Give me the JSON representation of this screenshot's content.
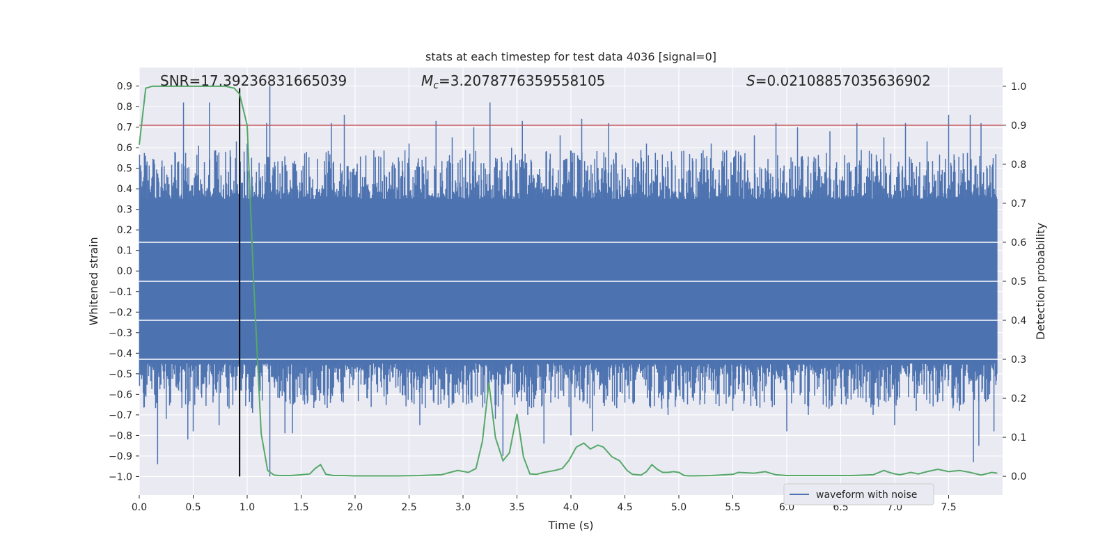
{
  "chart_data": {
    "type": "line",
    "title": "stats at each timestep for test data 4036 [signal=0]",
    "xlabel": "Time (s)",
    "ylabel": "Whitened strain",
    "y2label": "Detection probability",
    "xlim": [
      0.0,
      8.0
    ],
    "ylim": [
      -1.09,
      0.99
    ],
    "y2lim": [
      -0.048,
      1.048
    ],
    "xticks": [
      "0.0",
      "0.5",
      "1.0",
      "1.5",
      "2.0",
      "2.5",
      "3.0",
      "3.5",
      "4.0",
      "4.5",
      "5.0",
      "5.5",
      "6.0",
      "6.5",
      "7.0",
      "7.5"
    ],
    "yticks": [
      "0.9",
      "0.8",
      "0.7",
      "0.6",
      "0.5",
      "0.4",
      "0.3",
      "0.2",
      "0.1",
      "0.0",
      "-0.1",
      "-0.2",
      "-0.3",
      "-0.4",
      "-0.5",
      "-0.6",
      "-0.7",
      "-0.8",
      "-0.9",
      "-1.0"
    ],
    "y2ticks": [
      "1.0",
      "0.9",
      "0.8",
      "0.7",
      "0.6",
      "0.5",
      "0.4",
      "0.3",
      "0.2",
      "0.1",
      "0.0"
    ],
    "annotations": {
      "snr": "SNR=17.39236831665039",
      "mc_symbol": "M",
      "mc_sub": "c",
      "mc_value": "=3.2078776359558105",
      "s_symbol": "S",
      "s_value": "=0.021088570356369​02"
    },
    "threshold_probability": 0.9,
    "marker_time": 0.93,
    "legend": [
      "waveform with noise"
    ],
    "series": [
      {
        "name": "waveform with noise",
        "color": "#4c72b0",
        "band_typical": [
          -0.43,
          0.33
        ],
        "spikes": [
          [
            0.05,
            0.55
          ],
          [
            0.17,
            -0.94
          ],
          [
            0.25,
            -0.72
          ],
          [
            0.33,
            0.58
          ],
          [
            0.41,
            0.82
          ],
          [
            0.45,
            -0.82
          ],
          [
            0.5,
            -0.78
          ],
          [
            0.55,
            0.61
          ],
          [
            0.65,
            0.82
          ],
          [
            0.74,
            -0.75
          ],
          [
            0.8,
            0.58
          ],
          [
            0.9,
            0.63
          ],
          [
            0.93,
            0.65
          ],
          [
            1.0,
            0.62
          ],
          [
            1.05,
            -0.69
          ],
          [
            1.18,
            0.72
          ],
          [
            1.21,
            0.9
          ],
          [
            1.21,
            -1.0
          ],
          [
            1.35,
            -0.79
          ],
          [
            1.42,
            -0.79
          ],
          [
            1.55,
            0.58
          ],
          [
            1.72,
            -0.65
          ],
          [
            1.78,
            0.72
          ],
          [
            1.9,
            0.76
          ],
          [
            2.1,
            0.56
          ],
          [
            2.3,
            -0.6
          ],
          [
            2.5,
            0.62
          ],
          [
            2.6,
            -0.75
          ],
          [
            2.75,
            0.73
          ],
          [
            2.9,
            0.65
          ],
          [
            3.0,
            -0.64
          ],
          [
            3.1,
            0.7
          ],
          [
            3.25,
            0.82
          ],
          [
            3.3,
            -0.72
          ],
          [
            3.37,
            -0.9
          ],
          [
            3.45,
            0.6
          ],
          [
            3.55,
            0.73
          ],
          [
            3.6,
            -0.7
          ],
          [
            3.75,
            -0.84
          ],
          [
            3.9,
            0.66
          ],
          [
            4.0,
            -0.8
          ],
          [
            4.1,
            0.74
          ],
          [
            4.2,
            -0.78
          ],
          [
            4.35,
            0.72
          ],
          [
            4.5,
            -0.64
          ],
          [
            4.7,
            0.62
          ],
          [
            4.9,
            -0.7
          ],
          [
            5.1,
            0.57
          ],
          [
            5.3,
            0.62
          ],
          [
            5.5,
            -0.68
          ],
          [
            5.7,
            0.66
          ],
          [
            5.9,
            0.72
          ],
          [
            6.0,
            -0.78
          ],
          [
            6.1,
            0.7
          ],
          [
            6.2,
            -0.7
          ],
          [
            6.4,
            0.68
          ],
          [
            6.55,
            -0.65
          ],
          [
            6.65,
            0.72
          ],
          [
            6.8,
            -0.7
          ],
          [
            6.9,
            0.65
          ],
          [
            7.0,
            -0.75
          ],
          [
            7.1,
            0.72
          ],
          [
            7.2,
            -0.68
          ],
          [
            7.3,
            0.63
          ],
          [
            7.5,
            0.76
          ],
          [
            7.6,
            -0.68
          ],
          [
            7.7,
            0.76
          ],
          [
            7.73,
            -0.93
          ],
          [
            7.78,
            -0.85
          ],
          [
            7.8,
            0.72
          ],
          [
            7.88,
            -0.6
          ],
          [
            7.92,
            -0.78
          ]
        ]
      },
      {
        "name": "Detection probability",
        "color": "#55a868",
        "axis": "right",
        "x": [
          0.0,
          0.06,
          0.12,
          0.2,
          0.3,
          0.4,
          0.5,
          0.6,
          0.7,
          0.8,
          0.88,
          0.93,
          1.0,
          1.06,
          1.13,
          1.19,
          1.25,
          1.3,
          1.4,
          1.5,
          1.58,
          1.63,
          1.68,
          1.73,
          1.8,
          1.9,
          2.0,
          2.2,
          2.4,
          2.6,
          2.7,
          2.8,
          2.88,
          2.95,
          3.05,
          3.12,
          3.18,
          3.24,
          3.3,
          3.37,
          3.43,
          3.5,
          3.56,
          3.62,
          3.68,
          3.75,
          3.85,
          3.92,
          3.98,
          4.05,
          4.12,
          4.18,
          4.25,
          4.3,
          4.38,
          4.45,
          4.52,
          4.57,
          4.65,
          4.7,
          4.75,
          4.8,
          4.85,
          4.9,
          4.95,
          5.0,
          5.05,
          5.1,
          5.3,
          5.5,
          5.55,
          5.7,
          5.8,
          5.9,
          6.0,
          6.2,
          6.4,
          6.6,
          6.8,
          6.9,
          6.95,
          7.0,
          7.05,
          7.15,
          7.22,
          7.3,
          7.4,
          7.5,
          7.6,
          7.7,
          7.8,
          7.9,
          7.95
        ],
        "y": [
          0.85,
          0.995,
          1.0,
          1.0,
          1.0,
          1.0,
          1.0,
          1.0,
          1.0,
          1.0,
          0.995,
          0.98,
          0.9,
          0.5,
          0.11,
          0.015,
          0.003,
          0.002,
          0.002,
          0.004,
          0.006,
          0.02,
          0.03,
          0.005,
          0.002,
          0.002,
          0.001,
          0.001,
          0.001,
          0.002,
          0.003,
          0.004,
          0.01,
          0.015,
          0.01,
          0.02,
          0.09,
          0.24,
          0.1,
          0.04,
          0.06,
          0.16,
          0.05,
          0.006,
          0.005,
          0.01,
          0.015,
          0.02,
          0.04,
          0.075,
          0.085,
          0.07,
          0.08,
          0.075,
          0.05,
          0.04,
          0.015,
          0.005,
          0.003,
          0.012,
          0.03,
          0.018,
          0.01,
          0.01,
          0.012,
          0.01,
          0.002,
          0.001,
          0.002,
          0.005,
          0.01,
          0.008,
          0.012,
          0.004,
          0.002,
          0.002,
          0.002,
          0.002,
          0.004,
          0.015,
          0.01,
          0.006,
          0.004,
          0.01,
          0.006,
          0.012,
          0.018,
          0.012,
          0.015,
          0.01,
          0.003,
          0.01,
          0.008
        ]
      }
    ]
  }
}
